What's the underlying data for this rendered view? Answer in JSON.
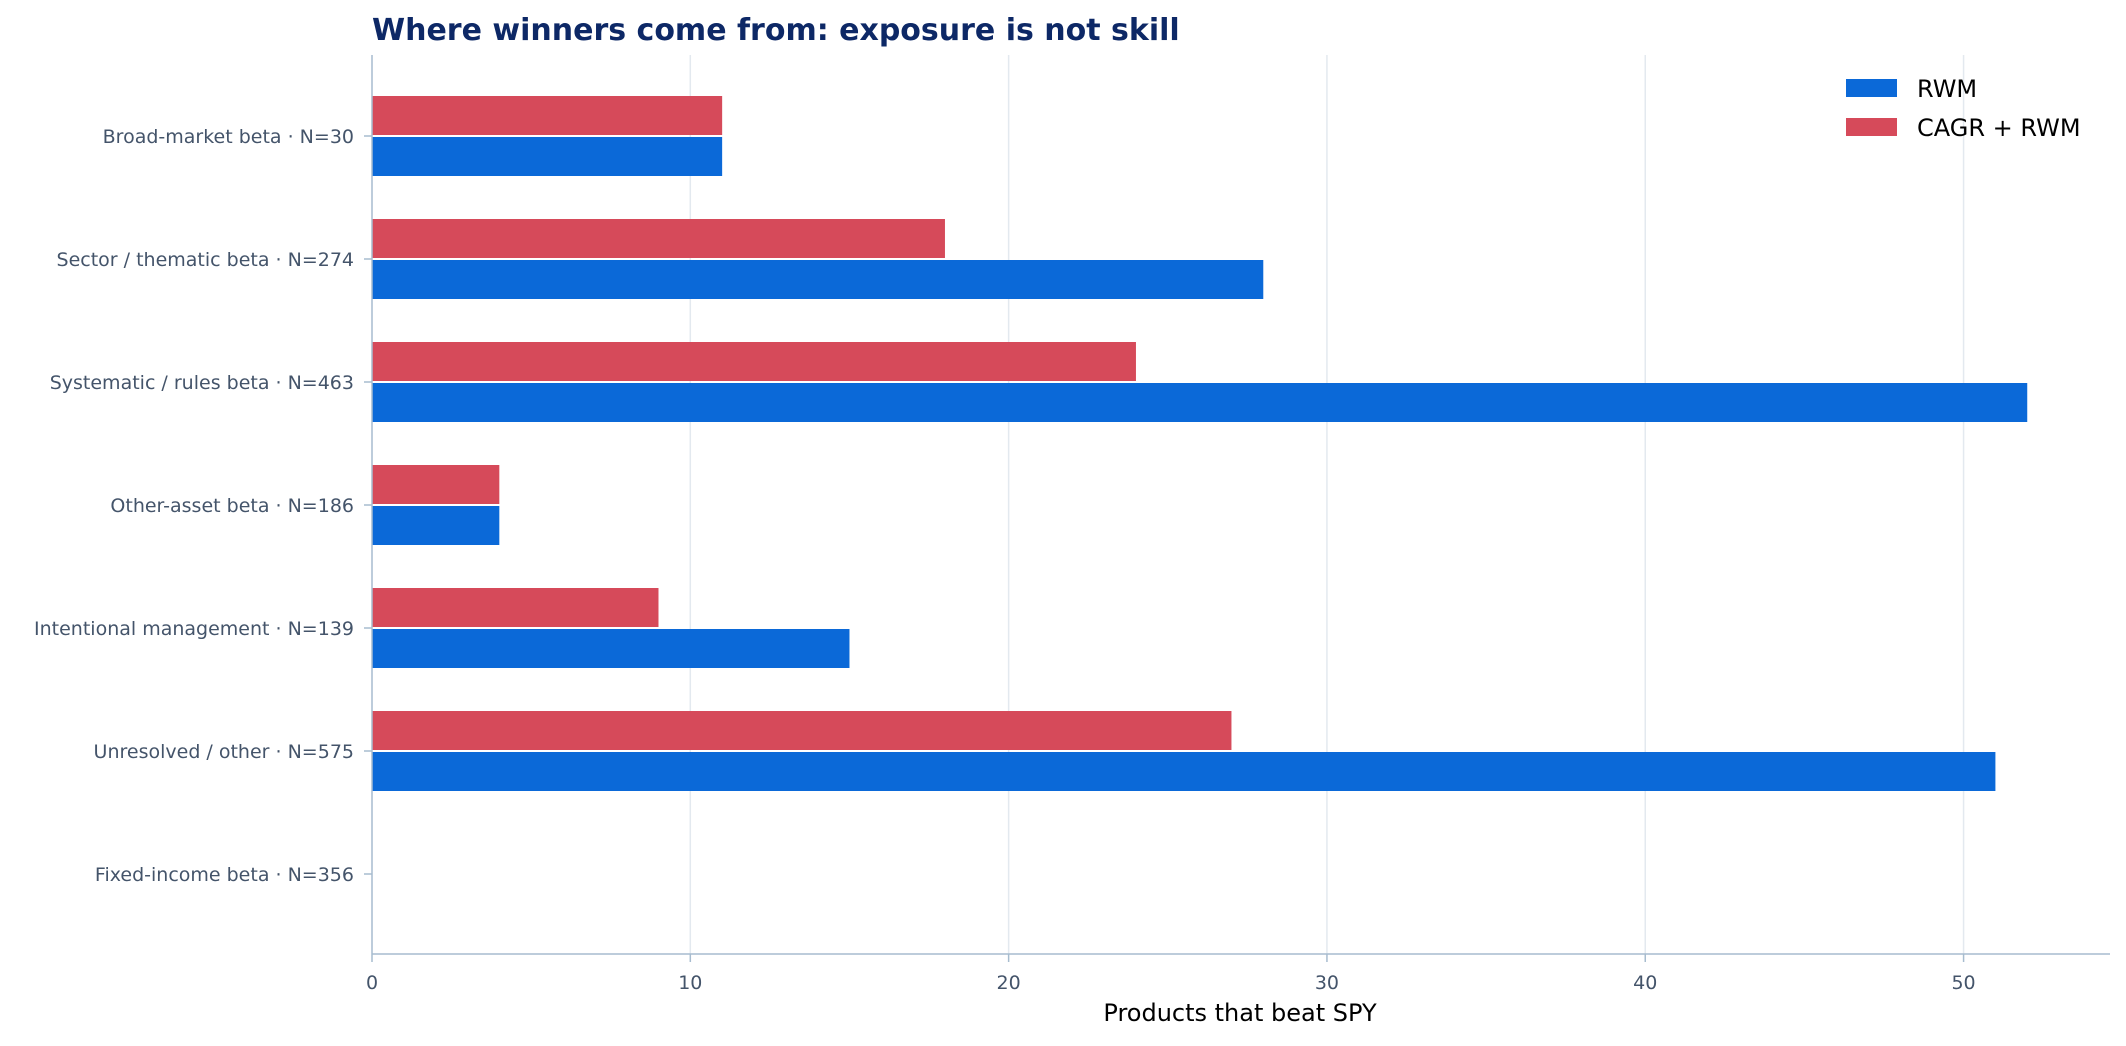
{
  "chart_data": {
    "type": "bar",
    "orientation": "horizontal",
    "title": "Where winners come from: exposure is not skill",
    "xlabel": "Products that beat SPY",
    "ylabel": "",
    "xlim": [
      0,
      54.6
    ],
    "xticks": [
      0,
      10,
      20,
      30,
      40,
      50
    ],
    "grid": "vertical",
    "legend_position": "top-right",
    "categories": [
      "Broad-market beta · N=30",
      "Sector / thematic beta · N=274",
      "Systematic / rules beta · N=463",
      "Other-asset beta · N=186",
      "Intentional management · N=139",
      "Unresolved / other · N=575",
      "Fixed-income beta · N=356"
    ],
    "series": [
      {
        "name": "RWM",
        "color": "#0b69d8",
        "values": [
          11,
          28,
          52,
          4,
          15,
          51,
          0
        ]
      },
      {
        "name": "CAGR + RWM",
        "color": "#d64a5a",
        "values": [
          11,
          18,
          24,
          4,
          9,
          27,
          0
        ]
      }
    ]
  },
  "colors": {
    "title": "#0d2866",
    "category_label": "#44546a",
    "tick_label": "#44546a",
    "axis_label": "#000000",
    "axis_line": "#a7bccf",
    "grid": "#e3e9ef"
  }
}
